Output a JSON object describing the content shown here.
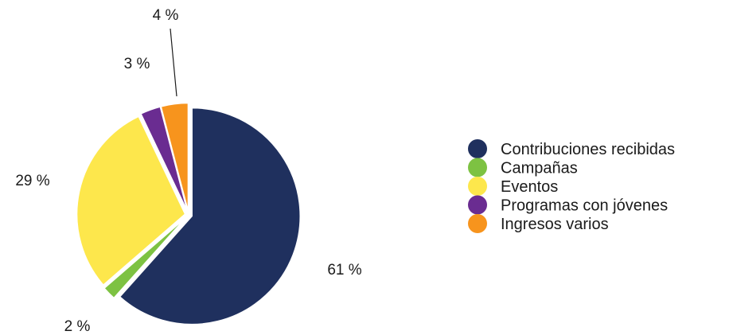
{
  "chart_data": {
    "type": "pie",
    "title": "",
    "categories": [
      "Contribuciones recibidas",
      "Campañas",
      "Eventos",
      "Programas con jóvenes",
      "Ingresos varios"
    ],
    "values": [
      61,
      2,
      29,
      3,
      4
    ],
    "value_labels": [
      "61 %",
      "2 %",
      "29 %",
      "3 %",
      "4 %"
    ],
    "colors": [
      "#1f305e",
      "#7dc242",
      "#fde74c",
      "#6a2c91",
      "#f7941d"
    ],
    "exploded": true,
    "start_angle_deg": 0,
    "direction": "clockwise",
    "legend_position": "right",
    "grid": false
  }
}
